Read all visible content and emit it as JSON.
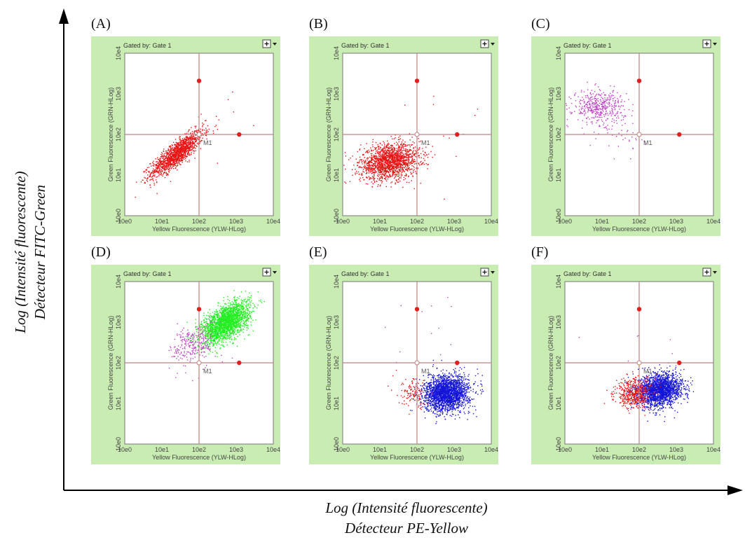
{
  "figure": {
    "y_axis_label_line1": "Log (Intensité fluorescente)",
    "y_axis_label_line2": "Détecteur FITC-Green",
    "x_axis_label_line1": "Log (Intensité fluorescente)",
    "x_axis_label_line2": "Détecteur PE-Yellow"
  },
  "colors": {
    "panel_bg": "#c9ecb3",
    "plot_bg": "#ffffff",
    "gate_line": "#c08080",
    "marker": "#e02020",
    "red": "#e81414",
    "green": "#22ee22",
    "blue": "#1414d8",
    "purple": "#c040c8"
  },
  "chart_data": [
    {
      "type": "scatter",
      "panel": "(A)",
      "gated_by": "Gated by: Gate 1",
      "xlabel": "Yellow Fluorescence (YLW-HLog)",
      "ylabel": "Green Fluorescence (GRN-HLog)",
      "xscale": "log",
      "yscale": "log",
      "xlim": [
        1,
        10000
      ],
      "ylim": [
        1,
        10000
      ],
      "x_ticks": [
        "10e0",
        "10e1",
        "10e2",
        "10e3",
        "10e4"
      ],
      "y_ticks": [
        "10e0",
        "10e1",
        "10e2",
        "10e3",
        "10e4"
      ],
      "gate": {
        "x": 100,
        "y": 100,
        "label": "M1"
      },
      "clusters": [
        {
          "color": "red",
          "center": [
            25,
            35
          ],
          "spread": [
            0.35,
            0.28
          ],
          "corr": 0.85,
          "count": 1400
        },
        {
          "color": "red",
          "center": [
            500,
            300
          ],
          "spread": [
            0.5,
            0.5
          ],
          "corr": 0,
          "count": 8
        }
      ]
    },
    {
      "type": "scatter",
      "panel": "(B)",
      "gated_by": "Gated by: Gate 1",
      "xlabel": "Yellow Fluorescence (YLW-HLog)",
      "ylabel": "Green Fluorescence (GRN-HLog)",
      "xscale": "log",
      "yscale": "log",
      "xlim": [
        1,
        10000
      ],
      "ylim": [
        1,
        10000
      ],
      "x_ticks": [
        "10e0",
        "10e1",
        "10e2",
        "10e3",
        "10e4"
      ],
      "y_ticks": [
        "10e0",
        "10e1",
        "10e2",
        "10e3",
        "10e4"
      ],
      "gate": {
        "x": 100,
        "y": 100,
        "label": "M1"
      },
      "clusters": [
        {
          "color": "red",
          "center": [
            18,
            22
          ],
          "spread": [
            0.4,
            0.22
          ],
          "corr": 0.2,
          "count": 1700
        },
        {
          "color": "red",
          "center": [
            400,
            300
          ],
          "spread": [
            0.6,
            0.6
          ],
          "corr": 0,
          "count": 10
        }
      ]
    },
    {
      "type": "scatter",
      "panel": "(C)",
      "gated_by": "Gated by: Gate 1",
      "xlabel": "Yellow Fluorescence (YLW-HLog)",
      "ylabel": "Green Fluorescence (GRN-HLog)",
      "xscale": "log",
      "yscale": "log",
      "xlim": [
        1,
        10000
      ],
      "ylim": [
        1,
        10000
      ],
      "x_ticks": [
        "10e0",
        "10e1",
        "10e2",
        "10e3",
        "10e4"
      ],
      "y_ticks": [
        "10e0",
        "10e1",
        "10e2",
        "10e3",
        "10e4"
      ],
      "gate": {
        "x": 100,
        "y": 100,
        "label": "M1"
      },
      "clusters": [
        {
          "color": "purple",
          "center": [
            8,
            500
          ],
          "spread": [
            0.35,
            0.2
          ],
          "corr": 0,
          "count": 450
        },
        {
          "color": "purple",
          "center": [
            30,
            90
          ],
          "spread": [
            0.4,
            0.3
          ],
          "corr": 0,
          "count": 40
        }
      ]
    },
    {
      "type": "scatter",
      "panel": "(D)",
      "gated_by": "Gated by: Gate 1",
      "xlabel": "Yellow Fluorescence (YLW-HLog)",
      "ylabel": "Green Fluorescence (GRN-HLog)",
      "xscale": "log",
      "yscale": "log",
      "xlim": [
        1,
        10000
      ],
      "ylim": [
        1,
        10000
      ],
      "x_ticks": [
        "10e0",
        "10e1",
        "10e2",
        "10e3",
        "10e4"
      ],
      "y_ticks": [
        "10e0",
        "10e1",
        "10e2",
        "10e3",
        "10e4"
      ],
      "gate": {
        "x": 100,
        "y": 100,
        "label": "M1"
      },
      "clusters": [
        {
          "color": "green",
          "center": [
            500,
            1000
          ],
          "spread": [
            0.32,
            0.25
          ],
          "corr": 0.55,
          "count": 2200
        },
        {
          "color": "purple",
          "center": [
            70,
            300
          ],
          "spread": [
            0.3,
            0.25
          ],
          "corr": 0.3,
          "count": 260
        },
        {
          "color": "purple",
          "center": [
            200,
            60
          ],
          "spread": [
            0.5,
            0.3
          ],
          "corr": 0,
          "count": 10
        }
      ]
    },
    {
      "type": "scatter",
      "panel": "(E)",
      "gated_by": "Gated by: Gate 1",
      "xlabel": "Yellow Fluorescence (YLW-HLog)",
      "ylabel": "Green Fluorescence (GRN-HLog)",
      "xscale": "log",
      "yscale": "log",
      "xlim": [
        1,
        10000
      ],
      "ylim": [
        1,
        10000
      ],
      "x_ticks": [
        "10e0",
        "10e1",
        "10e2",
        "10e3",
        "10e4"
      ],
      "y_ticks": [
        "10e0",
        "10e1",
        "10e2",
        "10e3",
        "10e4"
      ],
      "gate": {
        "x": 100,
        "y": 100,
        "label": "M1"
      },
      "clusters": [
        {
          "color": "blue",
          "center": [
            600,
            18
          ],
          "spread": [
            0.3,
            0.22
          ],
          "corr": 0.1,
          "count": 2200
        },
        {
          "color": "red",
          "center": [
            80,
            18
          ],
          "spread": [
            0.22,
            0.18
          ],
          "corr": 0,
          "count": 120
        },
        {
          "color": "purple",
          "center": [
            300,
            600
          ],
          "spread": [
            0.6,
            0.5
          ],
          "corr": 0,
          "count": 12
        }
      ]
    },
    {
      "type": "scatter",
      "panel": "(F)",
      "gated_by": "Gated by: Gate 1",
      "xlabel": "Yellow Fluorescence (YLW-HLog)",
      "ylabel": "Green Fluorescence (GRN-HLog)",
      "xscale": "log",
      "yscale": "log",
      "xlim": [
        1,
        10000
      ],
      "ylim": [
        1,
        10000
      ],
      "x_ticks": [
        "10e0",
        "10e1",
        "10e2",
        "10e3",
        "10e4"
      ],
      "y_ticks": [
        "10e0",
        "10e1",
        "10e2",
        "10e3",
        "10e4"
      ],
      "gate": {
        "x": 100,
        "y": 100,
        "label": "M1"
      },
      "clusters": [
        {
          "color": "blue",
          "center": [
            350,
            22
          ],
          "spread": [
            0.3,
            0.2
          ],
          "corr": 0.15,
          "count": 2000
        },
        {
          "color": "red",
          "center": [
            70,
            18
          ],
          "spread": [
            0.25,
            0.18
          ],
          "corr": 0.1,
          "count": 500
        },
        {
          "color": "purple",
          "center": [
            300,
            400
          ],
          "spread": [
            0.6,
            0.5
          ],
          "corr": 0,
          "count": 8
        }
      ]
    }
  ]
}
